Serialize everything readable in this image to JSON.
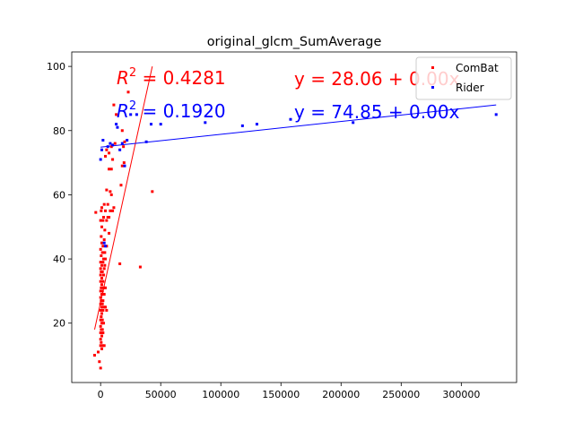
{
  "chart_data": {
    "type": "scatter",
    "title": "original_glcm_SumAverage",
    "xlabel": "",
    "ylabel": "",
    "xlim": [
      -24000,
      346000
    ],
    "ylim": [
      1.5,
      104.5
    ],
    "xticks": [
      0,
      50000,
      100000,
      150000,
      200000,
      250000,
      300000
    ],
    "xtick_labels": [
      "0",
      "50000",
      "100000",
      "150000",
      "200000",
      "250000",
      "300000"
    ],
    "yticks": [
      20,
      40,
      60,
      80,
      100
    ],
    "ytick_labels": [
      "20",
      "40",
      "60",
      "80",
      "100"
    ],
    "grid": false,
    "legend_position": "top-right",
    "series": [
      {
        "name": "ComBat",
        "color": "#ff0000",
        "points": [
          [
            -5000,
            10
          ],
          [
            -4000,
            54.5
          ],
          [
            -2000,
            11
          ],
          [
            -1000,
            8
          ],
          [
            0,
            6
          ],
          [
            0,
            13
          ],
          [
            0,
            15
          ],
          [
            0,
            17
          ],
          [
            0,
            19
          ],
          [
            0,
            21
          ],
          [
            0,
            24
          ],
          [
            0,
            26
          ],
          [
            0,
            28
          ],
          [
            0,
            30
          ],
          [
            0,
            33
          ],
          [
            0,
            35
          ],
          [
            0,
            37
          ],
          [
            0,
            39
          ],
          [
            0,
            43
          ],
          [
            0,
            52
          ],
          [
            500,
            14
          ],
          [
            500,
            18
          ],
          [
            500,
            22
          ],
          [
            500,
            27
          ],
          [
            500,
            31
          ],
          [
            500,
            36
          ],
          [
            500,
            41
          ],
          [
            500,
            47
          ],
          [
            500,
            55
          ],
          [
            1000,
            12
          ],
          [
            1000,
            16
          ],
          [
            1000,
            20
          ],
          [
            1000,
            23
          ],
          [
            1000,
            25
          ],
          [
            1000,
            29
          ],
          [
            1000,
            32
          ],
          [
            1000,
            34
          ],
          [
            1000,
            38
          ],
          [
            1000,
            45
          ],
          [
            1000,
            50
          ],
          [
            1000,
            56
          ],
          [
            1500,
            13
          ],
          [
            1500,
            18
          ],
          [
            1500,
            21
          ],
          [
            1500,
            26
          ],
          [
            1500,
            30
          ],
          [
            1500,
            36
          ],
          [
            1500,
            42
          ],
          [
            2000,
            17
          ],
          [
            2000,
            24
          ],
          [
            2000,
            27
          ],
          [
            2000,
            33
          ],
          [
            2000,
            39
          ],
          [
            2000,
            44
          ],
          [
            2000,
            52
          ],
          [
            2500,
            20
          ],
          [
            2500,
            31
          ],
          [
            2500,
            35
          ],
          [
            2500,
            40
          ],
          [
            2500,
            53
          ],
          [
            3000,
            13
          ],
          [
            3000,
            25
          ],
          [
            3000,
            29
          ],
          [
            3000,
            37
          ],
          [
            3000,
            46
          ],
          [
            3000,
            57
          ],
          [
            3500,
            38
          ],
          [
            3500,
            42
          ],
          [
            3500,
            49
          ],
          [
            4000,
            25
          ],
          [
            4000,
            31
          ],
          [
            4000,
            40
          ],
          [
            4000,
            55
          ],
          [
            4000,
            72
          ],
          [
            5000,
            24
          ],
          [
            5000,
            44
          ],
          [
            5000,
            52
          ],
          [
            5000,
            61.5
          ],
          [
            5000,
            74
          ],
          [
            6000,
            53
          ],
          [
            6000,
            57
          ],
          [
            7000,
            48
          ],
          [
            7000,
            53
          ],
          [
            7000,
            68
          ],
          [
            7000,
            73
          ],
          [
            8000,
            55
          ],
          [
            8000,
            61
          ],
          [
            9000,
            60
          ],
          [
            9000,
            68
          ],
          [
            9000,
            75
          ],
          [
            10000,
            55
          ],
          [
            10000,
            71
          ],
          [
            11000,
            56
          ],
          [
            11000,
            88
          ],
          [
            12000,
            76
          ],
          [
            13000,
            85
          ],
          [
            16000,
            38.5
          ],
          [
            17000,
            63
          ],
          [
            18000,
            69
          ],
          [
            18000,
            80
          ],
          [
            19000,
            75
          ],
          [
            19500,
            70
          ],
          [
            20000,
            76.5
          ],
          [
            23000,
            92
          ],
          [
            33000,
            37.5
          ],
          [
            43000,
            61
          ]
        ]
      },
      {
        "name": "Rider",
        "color": "#0000ff",
        "points": [
          [
            0,
            71
          ],
          [
            1000,
            74
          ],
          [
            2000,
            77
          ],
          [
            3000,
            45
          ],
          [
            4000,
            44
          ],
          [
            6000,
            75
          ],
          [
            8000,
            76
          ],
          [
            10000,
            75.5
          ],
          [
            13000,
            82
          ],
          [
            14000,
            81
          ],
          [
            16000,
            74
          ],
          [
            18000,
            76
          ],
          [
            20000,
            69
          ],
          [
            22000,
            77
          ],
          [
            25000,
            85
          ],
          [
            30000,
            85
          ],
          [
            38000,
            76.5
          ],
          [
            42000,
            82
          ],
          [
            50000,
            82
          ],
          [
            87000,
            82.5
          ],
          [
            118000,
            81.5
          ],
          [
            130000,
            82
          ],
          [
            158000,
            83.5
          ],
          [
            210000,
            82.5
          ],
          [
            329000,
            85
          ]
        ]
      }
    ],
    "fit_lines": [
      {
        "series": "ComBat",
        "x": [
          -5000,
          43000
        ],
        "y": [
          18,
          100
        ]
      },
      {
        "series": "Rider",
        "x": [
          0,
          329000
        ],
        "y": [
          74.85,
          88
        ]
      }
    ],
    "annotations": [
      {
        "series": "ComBat",
        "r2": "0.4281",
        "equation": "y = 28.06 + 0.00x"
      },
      {
        "series": "Rider",
        "r2": "0.1920",
        "equation": "y = 74.85 + 0.00x"
      }
    ]
  }
}
